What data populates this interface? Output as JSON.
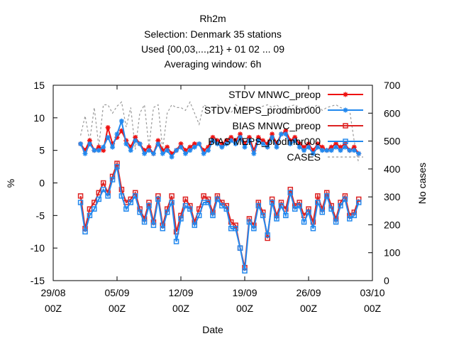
{
  "title_lines": [
    "Rh2m",
    "Selection: Denmark     35 stations",
    "Used {00,03,...,21} + 01 02 ... 09",
    "Averaging window:  6h"
  ],
  "chart_data": {
    "type": "line",
    "xlabel": "Date",
    "ylabel": "%",
    "y2label": "No cases",
    "xlim": [
      "2023-08-29T00:00",
      "2023-10-03T00:00"
    ],
    "ylim": [
      -15,
      15
    ],
    "y2lim": [
      0,
      700
    ],
    "x_ticks": [
      {
        "date": "2023-08-29T00:00",
        "label_top": "29/08",
        "label_bottom": "00Z"
      },
      {
        "date": "2023-09-05T00:00",
        "label_top": "05/09",
        "label_bottom": "00Z"
      },
      {
        "date": "2023-09-12T00:00",
        "label_top": "12/09",
        "label_bottom": "00Z"
      },
      {
        "date": "2023-09-19T00:00",
        "label_top": "19/09",
        "label_bottom": "00Z"
      },
      {
        "date": "2023-09-26T00:00",
        "label_top": "26/09",
        "label_bottom": "00Z"
      },
      {
        "date": "2023-10-03T00:00",
        "label_top": "03/10",
        "label_bottom": "00Z"
      }
    ],
    "y_ticks": [
      -15,
      -10,
      -5,
      0,
      5,
      10,
      15
    ],
    "y2_ticks": [
      0,
      100,
      200,
      300,
      400,
      500,
      600,
      700
    ],
    "legend_position": "top-right",
    "colors": {
      "stdv_mnwc": "#ee1111",
      "stdv_meps": "#2288ee",
      "bias_mnwc": "#dd2222",
      "bias_meps": "#2288ee",
      "cases": "#999999"
    },
    "series": [
      {
        "name": "STDV MNWC_preop",
        "key": "stdv_mnwc",
        "axis": "y1",
        "marker": "star",
        "x": [
          "2023-09-01T00:00",
          "2023-09-01T12:00",
          "2023-09-02T00:00",
          "2023-09-02T12:00",
          "2023-09-03T00:00",
          "2023-09-03T12:00",
          "2023-09-04T00:00",
          "2023-09-04T12:00",
          "2023-09-05T00:00",
          "2023-09-05T12:00",
          "2023-09-06T00:00",
          "2023-09-06T12:00",
          "2023-09-07T00:00",
          "2023-09-07T12:00",
          "2023-09-08T00:00",
          "2023-09-08T12:00",
          "2023-09-09T00:00",
          "2023-09-09T12:00",
          "2023-09-10T00:00",
          "2023-09-10T12:00",
          "2023-09-11T00:00",
          "2023-09-11T12:00",
          "2023-09-12T00:00",
          "2023-09-12T12:00",
          "2023-09-13T00:00",
          "2023-09-13T12:00",
          "2023-09-14T00:00",
          "2023-09-14T12:00",
          "2023-09-15T00:00",
          "2023-09-15T12:00",
          "2023-09-16T00:00",
          "2023-09-16T12:00",
          "2023-09-17T00:00",
          "2023-09-17T12:00",
          "2023-09-18T00:00",
          "2023-09-18T12:00",
          "2023-09-19T00:00",
          "2023-09-19T12:00",
          "2023-09-20T00:00",
          "2023-09-20T12:00",
          "2023-09-21T00:00",
          "2023-09-21T12:00",
          "2023-09-22T00:00",
          "2023-09-22T12:00",
          "2023-09-23T00:00",
          "2023-09-23T12:00",
          "2023-09-24T00:00",
          "2023-09-24T12:00",
          "2023-09-25T00:00",
          "2023-09-25T12:00",
          "2023-09-26T00:00",
          "2023-09-26T12:00",
          "2023-09-27T00:00",
          "2023-09-27T12:00",
          "2023-09-28T00:00",
          "2023-09-28T12:00",
          "2023-09-29T00:00",
          "2023-09-29T12:00",
          "2023-09-30T00:00",
          "2023-09-30T12:00",
          "2023-10-01T00:00",
          "2023-10-01T12:00"
        ],
        "values": [
          6.0,
          5.0,
          6.5,
          5.0,
          5.5,
          5.0,
          8.5,
          6.0,
          7.0,
          8.0,
          6.5,
          5.5,
          7.0,
          6.0,
          5.0,
          5.5,
          4.5,
          6.5,
          5.0,
          5.5,
          4.5,
          5.0,
          6.0,
          5.0,
          5.5,
          6.0,
          6.0,
          5.0,
          5.5,
          7.0,
          6.5,
          6.0,
          6.5,
          7.0,
          6.5,
          7.5,
          6.0,
          7.0,
          5.0,
          7.0,
          6.5,
          6.0,
          7.5,
          6.0,
          7.5,
          8.0,
          6.5,
          7.0,
          6.0,
          5.5,
          6.0,
          5.0,
          6.0,
          5.5,
          5.0,
          5.5,
          6.0,
          5.5,
          6.0,
          5.0,
          5.5,
          4.5
        ]
      },
      {
        "name": "STDV MEPS_prodmbr000",
        "key": "stdv_meps",
        "axis": "y1",
        "marker": "star",
        "x": [
          "2023-09-01T00:00",
          "2023-09-01T12:00",
          "2023-09-02T00:00",
          "2023-09-02T12:00",
          "2023-09-03T00:00",
          "2023-09-03T12:00",
          "2023-09-04T00:00",
          "2023-09-04T12:00",
          "2023-09-05T00:00",
          "2023-09-05T12:00",
          "2023-09-06T00:00",
          "2023-09-06T12:00",
          "2023-09-07T00:00",
          "2023-09-07T12:00",
          "2023-09-08T00:00",
          "2023-09-08T12:00",
          "2023-09-09T00:00",
          "2023-09-09T12:00",
          "2023-09-10T00:00",
          "2023-09-10T12:00",
          "2023-09-11T00:00",
          "2023-09-11T12:00",
          "2023-09-12T00:00",
          "2023-09-12T12:00",
          "2023-09-13T00:00",
          "2023-09-13T12:00",
          "2023-09-14T00:00",
          "2023-09-14T12:00",
          "2023-09-15T00:00",
          "2023-09-15T12:00",
          "2023-09-16T00:00",
          "2023-09-16T12:00",
          "2023-09-17T00:00",
          "2023-09-17T12:00",
          "2023-09-18T00:00",
          "2023-09-18T12:00",
          "2023-09-19T00:00",
          "2023-09-19T12:00",
          "2023-09-20T00:00",
          "2023-09-20T12:00",
          "2023-09-21T00:00",
          "2023-09-21T12:00",
          "2023-09-22T00:00",
          "2023-09-22T12:00",
          "2023-09-23T00:00",
          "2023-09-23T12:00",
          "2023-09-24T00:00",
          "2023-09-24T12:00",
          "2023-09-25T00:00",
          "2023-09-25T12:00",
          "2023-09-26T00:00",
          "2023-09-26T12:00",
          "2023-09-27T00:00",
          "2023-09-27T12:00",
          "2023-09-28T00:00",
          "2023-09-28T12:00",
          "2023-09-29T00:00",
          "2023-09-29T12:00",
          "2023-09-30T00:00",
          "2023-09-30T12:00",
          "2023-10-01T00:00",
          "2023-10-01T12:00"
        ],
        "values": [
          6.0,
          4.5,
          6.0,
          5.0,
          5.0,
          5.5,
          7.0,
          5.5,
          7.5,
          9.5,
          6.0,
          5.0,
          6.5,
          6.0,
          4.5,
          5.0,
          4.5,
          6.0,
          4.5,
          5.0,
          4.0,
          5.0,
          5.5,
          4.5,
          5.0,
          5.5,
          6.0,
          4.5,
          5.0,
          6.5,
          6.0,
          5.5,
          6.0,
          6.5,
          6.0,
          7.0,
          5.5,
          6.5,
          4.5,
          6.5,
          6.0,
          5.5,
          7.0,
          5.5,
          7.5,
          7.5,
          6.0,
          6.5,
          5.5,
          5.0,
          5.5,
          4.5,
          5.5,
          5.0,
          5.0,
          5.0,
          5.5,
          5.0,
          5.5,
          5.0,
          5.0,
          4.5
        ]
      },
      {
        "name": "BIAS MNWC_preop",
        "key": "bias_mnwc",
        "axis": "y1",
        "marker": "square",
        "x": [
          "2023-09-01T00:00",
          "2023-09-01T12:00",
          "2023-09-02T00:00",
          "2023-09-02T12:00",
          "2023-09-03T00:00",
          "2023-09-03T12:00",
          "2023-09-04T00:00",
          "2023-09-04T12:00",
          "2023-09-05T00:00",
          "2023-09-05T12:00",
          "2023-09-06T00:00",
          "2023-09-06T12:00",
          "2023-09-07T00:00",
          "2023-09-07T12:00",
          "2023-09-08T00:00",
          "2023-09-08T12:00",
          "2023-09-09T00:00",
          "2023-09-09T12:00",
          "2023-09-10T00:00",
          "2023-09-10T12:00",
          "2023-09-11T00:00",
          "2023-09-11T12:00",
          "2023-09-12T00:00",
          "2023-09-12T12:00",
          "2023-09-13T00:00",
          "2023-09-13T12:00",
          "2023-09-14T00:00",
          "2023-09-14T12:00",
          "2023-09-15T00:00",
          "2023-09-15T12:00",
          "2023-09-16T00:00",
          "2023-09-16T12:00",
          "2023-09-17T00:00",
          "2023-09-17T12:00",
          "2023-09-18T00:00",
          "2023-09-18T12:00",
          "2023-09-19T00:00",
          "2023-09-19T12:00",
          "2023-09-20T00:00",
          "2023-09-20T12:00",
          "2023-09-21T00:00",
          "2023-09-21T12:00",
          "2023-09-22T00:00",
          "2023-09-22T12:00",
          "2023-09-23T00:00",
          "2023-09-23T12:00",
          "2023-09-24T00:00",
          "2023-09-24T12:00",
          "2023-09-25T00:00",
          "2023-09-25T12:00",
          "2023-09-26T00:00",
          "2023-09-26T12:00",
          "2023-09-27T00:00",
          "2023-09-27T12:00",
          "2023-09-28T00:00",
          "2023-09-28T12:00",
          "2023-09-29T00:00",
          "2023-09-29T12:00",
          "2023-09-30T00:00",
          "2023-09-30T12:00",
          "2023-10-01T00:00",
          "2023-10-01T12:00"
        ],
        "values": [
          -2.0,
          -7.0,
          -4.0,
          -3.0,
          -1.5,
          0.0,
          -1.5,
          1.0,
          3.0,
          -1.0,
          -3.0,
          -2.5,
          -1.5,
          -4.0,
          -5.5,
          -3.0,
          -6.0,
          -2.0,
          -6.5,
          -4.0,
          -2.0,
          -7.5,
          -5.0,
          -2.5,
          -3.5,
          -6.0,
          -4.0,
          -2.0,
          -2.5,
          -4.5,
          -2.0,
          -3.0,
          -3.5,
          -6.0,
          -6.5,
          -10.0,
          -13.0,
          -5.5,
          -6.5,
          -3.0,
          -4.5,
          -8.5,
          -2.5,
          -5.0,
          -3.0,
          -4.0,
          -1.0,
          -3.5,
          -3.0,
          -5.0,
          -4.0,
          -6.0,
          -2.0,
          -4.0,
          -1.5,
          -3.5,
          -5.5,
          -3.0,
          -2.0,
          -5.0,
          -4.5,
          -2.5
        ]
      },
      {
        "name": "BIAS MEPS_prodmbr000",
        "key": "bias_meps",
        "axis": "y1",
        "marker": "square",
        "x": [
          "2023-09-01T00:00",
          "2023-09-01T12:00",
          "2023-09-02T00:00",
          "2023-09-02T12:00",
          "2023-09-03T00:00",
          "2023-09-03T12:00",
          "2023-09-04T00:00",
          "2023-09-04T12:00",
          "2023-09-05T00:00",
          "2023-09-05T12:00",
          "2023-09-06T00:00",
          "2023-09-06T12:00",
          "2023-09-07T00:00",
          "2023-09-07T12:00",
          "2023-09-08T00:00",
          "2023-09-08T12:00",
          "2023-09-09T00:00",
          "2023-09-09T12:00",
          "2023-09-10T00:00",
          "2023-09-10T12:00",
          "2023-09-11T00:00",
          "2023-09-11T12:00",
          "2023-09-12T00:00",
          "2023-09-12T12:00",
          "2023-09-13T00:00",
          "2023-09-13T12:00",
          "2023-09-14T00:00",
          "2023-09-14T12:00",
          "2023-09-15T00:00",
          "2023-09-15T12:00",
          "2023-09-16T00:00",
          "2023-09-16T12:00",
          "2023-09-17T00:00",
          "2023-09-17T12:00",
          "2023-09-18T00:00",
          "2023-09-18T12:00",
          "2023-09-19T00:00",
          "2023-09-19T12:00",
          "2023-09-20T00:00",
          "2023-09-20T12:00",
          "2023-09-21T00:00",
          "2023-09-21T12:00",
          "2023-09-22T00:00",
          "2023-09-22T12:00",
          "2023-09-23T00:00",
          "2023-09-23T12:00",
          "2023-09-24T00:00",
          "2023-09-24T12:00",
          "2023-09-25T00:00",
          "2023-09-25T12:00",
          "2023-09-26T00:00",
          "2023-09-26T12:00",
          "2023-09-27T00:00",
          "2023-09-27T12:00",
          "2023-09-28T00:00",
          "2023-09-28T12:00",
          "2023-09-29T00:00",
          "2023-09-29T12:00",
          "2023-09-30T00:00",
          "2023-09-30T12:00",
          "2023-10-01T00:00",
          "2023-10-01T12:00"
        ],
        "values": [
          -3.0,
          -7.5,
          -5.0,
          -4.0,
          -2.5,
          -1.0,
          -2.0,
          0.5,
          2.5,
          -2.0,
          -4.0,
          -3.0,
          -2.0,
          -4.5,
          -6.0,
          -3.5,
          -6.5,
          -2.5,
          -7.0,
          -4.5,
          -3.0,
          -9.0,
          -5.5,
          -3.5,
          -4.0,
          -6.5,
          -5.0,
          -3.0,
          -3.0,
          -5.0,
          -2.5,
          -3.5,
          -4.0,
          -7.0,
          -7.0,
          -10.0,
          -13.5,
          -6.0,
          -7.0,
          -3.5,
          -5.0,
          -8.0,
          -3.0,
          -5.5,
          -3.5,
          -5.0,
          -1.5,
          -4.0,
          -3.5,
          -6.0,
          -4.5,
          -7.0,
          -3.0,
          -4.5,
          -2.0,
          -4.0,
          -6.0,
          -3.5,
          -2.5,
          -5.5,
          -5.0,
          -3.0
        ]
      },
      {
        "name": "CASES",
        "key": "cases",
        "axis": "y2",
        "marker": "none",
        "dashed": true,
        "x": [
          "2023-09-01T00:00",
          "2023-09-01T12:00",
          "2023-09-02T00:00",
          "2023-09-02T12:00",
          "2023-09-03T00:00",
          "2023-09-03T12:00",
          "2023-09-04T00:00",
          "2023-09-04T12:00",
          "2023-09-05T00:00",
          "2023-09-05T12:00",
          "2023-09-06T00:00",
          "2023-09-06T12:00",
          "2023-09-07T00:00",
          "2023-09-07T12:00",
          "2023-09-08T00:00",
          "2023-09-08T12:00",
          "2023-09-09T00:00",
          "2023-09-09T12:00",
          "2023-09-10T00:00",
          "2023-09-10T12:00",
          "2023-09-11T00:00",
          "2023-09-11T12:00",
          "2023-09-12T00:00",
          "2023-09-12T12:00",
          "2023-09-13T00:00",
          "2023-09-13T12:00",
          "2023-09-14T00:00",
          "2023-09-14T12:00",
          "2023-09-15T00:00",
          "2023-09-15T12:00",
          "2023-09-16T00:00",
          "2023-09-16T12:00",
          "2023-09-17T00:00",
          "2023-09-17T12:00",
          "2023-09-18T00:00",
          "2023-09-18T12:00",
          "2023-09-19T00:00",
          "2023-09-19T12:00",
          "2023-09-20T00:00",
          "2023-09-20T12:00",
          "2023-09-21T00:00",
          "2023-09-21T12:00",
          "2023-09-22T00:00",
          "2023-09-22T12:00",
          "2023-09-23T00:00",
          "2023-09-23T12:00",
          "2023-09-24T00:00",
          "2023-09-24T12:00",
          "2023-09-25T00:00",
          "2023-09-25T12:00",
          "2023-09-26T00:00",
          "2023-09-26T12:00",
          "2023-09-27T00:00",
          "2023-09-27T12:00",
          "2023-09-28T00:00",
          "2023-09-28T12:00",
          "2023-09-29T00:00",
          "2023-09-29T12:00",
          "2023-09-30T00:00",
          "2023-09-30T12:00",
          "2023-10-01T00:00",
          "2023-10-01T12:00"
        ],
        "values": [
          520,
          590,
          500,
          620,
          480,
          630,
          630,
          600,
          625,
          640,
          550,
          620,
          470,
          600,
          630,
          480,
          620,
          630,
          470,
          600,
          630,
          620,
          620,
          610,
          640,
          600,
          560,
          630,
          620,
          610,
          630,
          620,
          615,
          600,
          630,
          620,
          625,
          610,
          615,
          620,
          625,
          630,
          620,
          630,
          615,
          620,
          625,
          630,
          620,
          615,
          625,
          620,
          630,
          610,
          620,
          625,
          630,
          620,
          615,
          610,
          500,
          420
        ]
      }
    ]
  }
}
